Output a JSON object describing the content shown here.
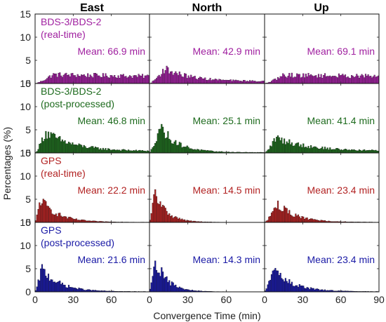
{
  "chart_data": {
    "type": "bar",
    "layout": "grid of histograms, 4 rows x 3 columns",
    "xlabel": "Convergence Time (min)",
    "ylabel": "Percentages (%)",
    "xlim": [
      0,
      90
    ],
    "ylim": [
      0,
      15
    ],
    "xticks": [
      "0",
      "30",
      "60",
      "90"
    ],
    "yticks": [
      "0",
      "5",
      "10",
      "15"
    ],
    "columns": [
      "East",
      "North",
      "Up"
    ],
    "bin_width_min": 1,
    "rows": [
      {
        "line1": "BDS-3/BDS-2",
        "line2": "(real-time)",
        "color": "#a020a0",
        "panels": [
          {
            "mean_label": "Mean: 66.9 min",
            "mode_x": 14,
            "peak": 1.9,
            "decay": 0.004,
            "floor": 0.55
          },
          {
            "mean_label": "Mean: 42.9 min",
            "mode_x": 12,
            "peak": 3.2,
            "decay": 0.05,
            "floor": 0.45
          },
          {
            "mean_label": "Mean: 69.1 min",
            "mode_x": 15,
            "peak": 1.8,
            "decay": 0.003,
            "floor": 0.6
          }
        ]
      },
      {
        "line1": "BDS-3/BDS-2",
        "line2": "(post-processed)",
        "color": "#1e6b1e",
        "panels": [
          {
            "mean_label": "Mean: 46.8 min",
            "mode_x": 8,
            "peak": 4.5,
            "decay": 0.045,
            "floor": 0.35
          },
          {
            "mean_label": "Mean: 25.1 min",
            "mode_x": 8,
            "peak": 5.8,
            "decay": 0.075,
            "floor": 0.1
          },
          {
            "mean_label": "Mean: 41.4 min",
            "mode_x": 9,
            "peak": 3.3,
            "decay": 0.04,
            "floor": 0.4
          }
        ]
      },
      {
        "line1": "GPS",
        "line2": "(real-time)",
        "color": "#b22222",
        "panels": [
          {
            "mean_label": "Mean: 22.2 min",
            "mode_x": 4,
            "peak": 5.0,
            "decay": 0.075,
            "floor": 0.05
          },
          {
            "mean_label": "Mean: 14.5 min",
            "mode_x": 4,
            "peak": 6.5,
            "decay": 0.11,
            "floor": 0.03
          },
          {
            "mean_label": "Mean: 23.4 min",
            "mode_x": 10,
            "peak": 4.0,
            "decay": 0.07,
            "floor": 0.05
          }
        ]
      },
      {
        "line1": "GPS",
        "line2": "(post-processed)",
        "color": "#1a1aa6",
        "panels": [
          {
            "mean_label": "Mean: 21.6 min",
            "mode_x": 5,
            "peak": 5.0,
            "decay": 0.07,
            "floor": 0.05
          },
          {
            "mean_label": "Mean: 14.3 min",
            "mode_x": 4,
            "peak": 7.5,
            "decay": 0.11,
            "floor": 0.03
          },
          {
            "mean_label": "Mean: 23.4 min",
            "mode_x": 6,
            "peak": 5.0,
            "decay": 0.065,
            "floor": 0.05
          }
        ]
      }
    ]
  }
}
